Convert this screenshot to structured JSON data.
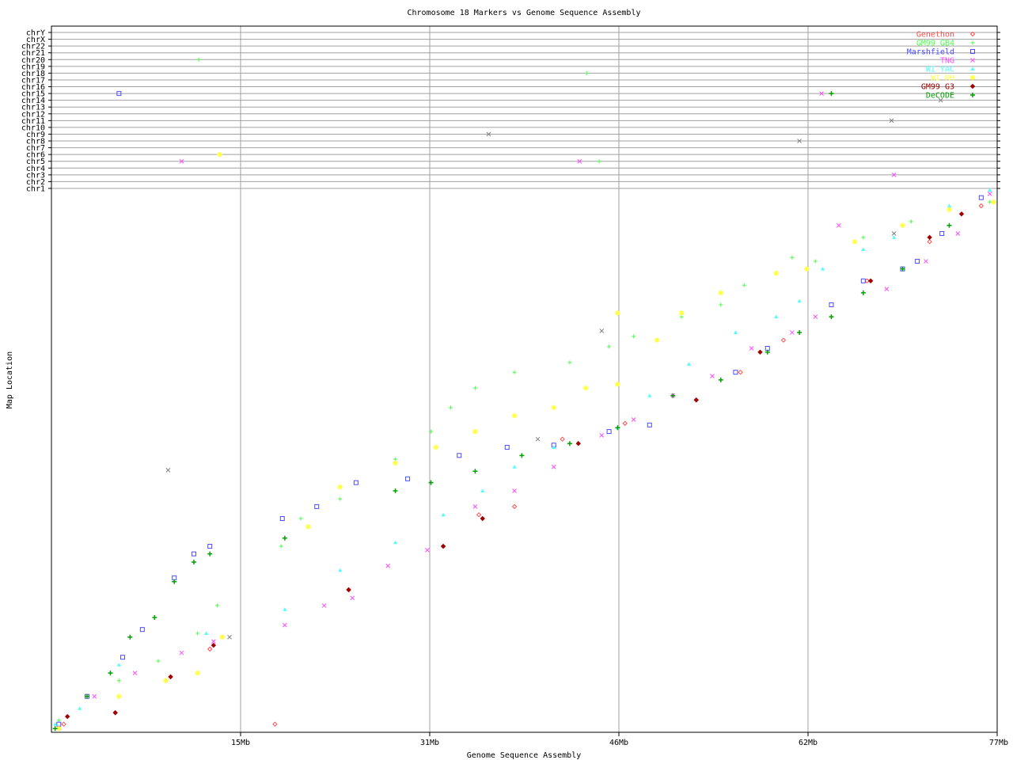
{
  "chart_data": {
    "type": "scatter",
    "title": "Chromosome 18 Markers vs Genome Sequence Assembly",
    "xlabel": "Genome Sequence Assembly",
    "ylabel": "Map Location",
    "xlim": [
      0,
      77
    ],
    "ylim": [
      0,
      100
    ],
    "x_ticks": [
      {
        "value": 15.4,
        "label": "15Mb"
      },
      {
        "value": 30.8,
        "label": "31Mb"
      },
      {
        "value": 46.2,
        "label": "46Mb"
      },
      {
        "value": 61.6,
        "label": "62Mb"
      },
      {
        "value": 77,
        "label": "77Mb"
      }
    ],
    "grid": true,
    "legend_position": "top-right",
    "other_chromosomes": [
      "chrY",
      "chrX",
      "chr22",
      "chr21",
      "chr20",
      "chr19",
      "chr18",
      "chr17",
      "chr16",
      "chr15",
      "chr14",
      "chr13",
      "chr12",
      "chr11",
      "chr10",
      "chr9",
      "chr8",
      "chr7",
      "chr6",
      "chr5",
      "chr4",
      "chr3",
      "chr2",
      "chr1"
    ],
    "series": [
      {
        "name": "Genethon",
        "color": "#ff4c4c",
        "marker": "diamond-open",
        "points": [
          [
            1.0,
            1.5
          ],
          [
            5.2,
            3.6
          ],
          [
            9.7,
            10.2
          ],
          [
            12.9,
            15.3
          ],
          [
            18.2,
            1.5
          ],
          [
            24.2,
            26.2
          ],
          [
            31.9,
            34.2
          ],
          [
            34.8,
            40.0
          ],
          [
            37.7,
            41.5
          ],
          [
            41.6,
            53.9
          ],
          [
            46.7,
            56.8
          ],
          [
            52.5,
            61.1
          ],
          [
            56.1,
            66.2
          ],
          [
            59.6,
            72.1
          ],
          [
            66.4,
            83.0
          ],
          [
            71.5,
            90.2
          ],
          [
            75.7,
            96.8
          ]
        ]
      },
      {
        "name": "GM99 GB4",
        "color": "#4cff4c",
        "marker": "plus",
        "points": [
          [
            0.6,
            2.2
          ],
          [
            5.5,
            9.5
          ],
          [
            8.7,
            13.1
          ],
          [
            11.9,
            18.2
          ],
          [
            13.5,
            23.3
          ],
          [
            18.7,
            34.2
          ],
          [
            20.3,
            39.3
          ],
          [
            23.5,
            42.9
          ],
          [
            28.0,
            50.2
          ],
          [
            30.9,
            55.3
          ],
          [
            32.5,
            59.7
          ],
          [
            34.5,
            63.3
          ],
          [
            37.7,
            66.2
          ],
          [
            42.2,
            68.0
          ],
          [
            45.4,
            70.9
          ],
          [
            47.4,
            72.8
          ],
          [
            51.3,
            76.4
          ],
          [
            54.5,
            78.6
          ],
          [
            56.4,
            82.2
          ],
          [
            60.3,
            87.3
          ],
          [
            62.2,
            86.6
          ],
          [
            66.1,
            91.0
          ],
          [
            70.0,
            93.9
          ],
          [
            76.4,
            97.5
          ],
          [
            12.0,
            "chr20"
          ],
          [
            43.6,
            "chr18"
          ],
          [
            44.6,
            "chr5"
          ]
        ]
      },
      {
        "name": "Marshfield",
        "color": "#4c4cff",
        "marker": "square-open",
        "points": [
          [
            0.6,
            1.5
          ],
          [
            2.9,
            6.6
          ],
          [
            5.8,
            13.8
          ],
          [
            7.4,
            18.9
          ],
          [
            10.0,
            28.4
          ],
          [
            11.6,
            32.8
          ],
          [
            12.9,
            34.2
          ],
          [
            18.8,
            39.3
          ],
          [
            21.6,
            41.5
          ],
          [
            24.8,
            45.9
          ],
          [
            29.0,
            46.6
          ],
          [
            33.2,
            50.9
          ],
          [
            37.1,
            52.4
          ],
          [
            40.9,
            52.8
          ],
          [
            45.4,
            55.3
          ],
          [
            48.7,
            56.5
          ],
          [
            55.7,
            66.2
          ],
          [
            58.3,
            70.6
          ],
          [
            63.5,
            78.6
          ],
          [
            66.1,
            83.0
          ],
          [
            69.3,
            85.2
          ],
          [
            70.5,
            86.6
          ],
          [
            72.5,
            91.7
          ],
          [
            75.7,
            98.3
          ],
          [
            5.5,
            "chr15"
          ]
        ]
      },
      {
        "name": "TNG",
        "color": "#ff4cff",
        "marker": "x",
        "points": [
          [
            0.6,
            0.7
          ],
          [
            3.5,
            6.6
          ],
          [
            6.8,
            10.9
          ],
          [
            10.6,
            14.6
          ],
          [
            13.2,
            16.7
          ],
          [
            19.0,
            19.7
          ],
          [
            22.2,
            23.3
          ],
          [
            24.5,
            24.7
          ],
          [
            27.4,
            30.6
          ],
          [
            30.6,
            33.5
          ],
          [
            34.5,
            41.5
          ],
          [
            37.7,
            44.4
          ],
          [
            40.9,
            48.8
          ],
          [
            44.8,
            54.6
          ],
          [
            47.4,
            57.5
          ],
          [
            50.6,
            61.9
          ],
          [
            53.8,
            65.5
          ],
          [
            57.0,
            70.6
          ],
          [
            60.3,
            73.5
          ],
          [
            62.2,
            76.4
          ],
          [
            64.1,
            93.2
          ],
          [
            68.0,
            81.5
          ],
          [
            71.2,
            86.6
          ],
          [
            73.8,
            91.7
          ],
          [
            76.4,
            99.0
          ],
          [
            10.6,
            "chr5"
          ],
          [
            43.0,
            "chr5"
          ],
          [
            62.7,
            "chr15"
          ],
          [
            68.6,
            "chr3"
          ]
        ]
      },
      {
        "name": "WI YAC",
        "color": "#4cffff",
        "marker": "triangle",
        "points": [
          [
            0.3,
            1.5
          ],
          [
            2.3,
            4.4
          ],
          [
            5.5,
            12.4
          ],
          [
            12.6,
            18.2
          ],
          [
            19.0,
            22.6
          ],
          [
            23.5,
            29.8
          ],
          [
            28.0,
            34.9
          ],
          [
            31.9,
            40.0
          ],
          [
            35.1,
            44.4
          ],
          [
            37.7,
            48.8
          ],
          [
            40.9,
            52.4
          ],
          [
            46.1,
            56.0
          ],
          [
            48.7,
            61.9
          ],
          [
            51.9,
            67.7
          ],
          [
            55.7,
            73.5
          ],
          [
            59.0,
            76.4
          ],
          [
            60.9,
            79.3
          ],
          [
            62.8,
            85.2
          ],
          [
            66.1,
            88.8
          ],
          [
            68.6,
            91.0
          ],
          [
            73.1,
            96.8
          ],
          [
            76.4,
            99.7
          ]
        ]
      },
      {
        "name": "WI RH",
        "color": "#ffff4c",
        "marker": "star",
        "points": [
          [
            0.6,
            0.7
          ],
          [
            5.5,
            6.6
          ],
          [
            9.3,
            9.5
          ],
          [
            11.9,
            10.9
          ],
          [
            13.9,
            17.5
          ],
          [
            20.9,
            37.8
          ],
          [
            23.5,
            45.1
          ],
          [
            28.0,
            49.5
          ],
          [
            31.3,
            52.4
          ],
          [
            34.5,
            55.3
          ],
          [
            37.7,
            58.2
          ],
          [
            40.9,
            59.7
          ],
          [
            43.5,
            63.3
          ],
          [
            46.1,
            64.0
          ],
          [
            46.1,
            77.1
          ],
          [
            49.3,
            72.1
          ],
          [
            51.3,
            77.1
          ],
          [
            54.5,
            80.8
          ],
          [
            59.0,
            84.4
          ],
          [
            61.5,
            85.2
          ],
          [
            65.4,
            90.2
          ],
          [
            69.3,
            93.2
          ],
          [
            73.1,
            96.1
          ],
          [
            76.7,
            97.5
          ],
          [
            13.7,
            "chr6"
          ]
        ]
      },
      {
        "name": "GM99 G3",
        "color": "#a00000",
        "marker": "diamond",
        "points": [
          [
            1.3,
            2.9
          ],
          [
            5.2,
            3.6
          ],
          [
            9.7,
            10.2
          ],
          [
            13.2,
            16.0
          ],
          [
            24.2,
            26.2
          ],
          [
            31.9,
            34.2
          ],
          [
            35.1,
            39.3
          ],
          [
            42.9,
            53.1
          ],
          [
            52.5,
            61.1
          ],
          [
            57.7,
            69.9
          ],
          [
            66.7,
            83.0
          ],
          [
            71.5,
            91.0
          ],
          [
            74.1,
            95.3
          ]
        ]
      },
      {
        "name": "DeCODE",
        "color": "#00a000",
        "marker": "plus-bold",
        "points": [
          [
            0.3,
            0.7
          ],
          [
            2.9,
            6.6
          ],
          [
            4.8,
            10.9
          ],
          [
            6.4,
            17.5
          ],
          [
            8.4,
            21.1
          ],
          [
            10.0,
            27.7
          ],
          [
            11.6,
            31.3
          ],
          [
            12.9,
            32.8
          ],
          [
            19.0,
            35.7
          ],
          [
            28.0,
            44.4
          ],
          [
            30.9,
            45.9
          ],
          [
            34.5,
            48.0
          ],
          [
            38.3,
            50.9
          ],
          [
            42.2,
            53.1
          ],
          [
            46.1,
            56.0
          ],
          [
            50.6,
            61.9
          ],
          [
            54.5,
            64.8
          ],
          [
            58.3,
            69.9
          ],
          [
            60.9,
            73.5
          ],
          [
            63.5,
            76.4
          ],
          [
            66.1,
            80.8
          ],
          [
            69.3,
            85.2
          ],
          [
            73.1,
            93.2
          ],
          [
            63.5,
            "chr15"
          ]
        ]
      },
      {
        "color": "#808080",
        "marker": "mixed",
        "points": [
          [
            9.5,
            48.2
          ],
          [
            14.5,
            17.5
          ],
          [
            39.6,
            53.9
          ],
          [
            44.8,
            73.8
          ],
          [
            68.6,
            91.7
          ],
          [
            35.6,
            "chr9"
          ],
          [
            60.9,
            "chr8"
          ],
          [
            68.4,
            "chr11"
          ],
          [
            72.4,
            "chr14"
          ]
        ]
      }
    ]
  }
}
